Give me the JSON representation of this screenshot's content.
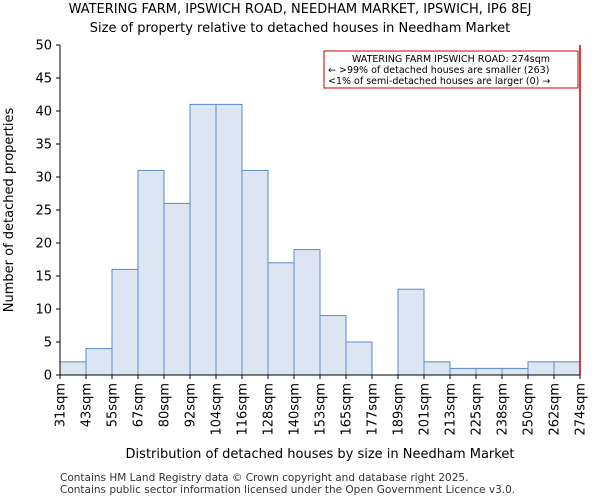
{
  "title_line1": "WATERING FARM, IPSWICH ROAD, NEEDHAM MARKET, IPSWICH, IP6 8EJ",
  "title_line2": "Size of property relative to detached houses in Needham Market",
  "footer_line1": "Contains HM Land Registry data © Crown copyright and database right 2025.",
  "footer_line2": "Contains public sector information licensed under the Open Government Licence v3.0.",
  "colors": {
    "bar_fill": "#dce6f2",
    "bar_stroke": "#5b8ac7",
    "marker": "#cc0000",
    "axis": "#000000"
  },
  "chart_data": {
    "type": "bar",
    "title": "Size of property relative to detached houses in Needham Market",
    "xlabel": "Distribution of detached houses by size in Needham Market",
    "ylabel": "Number of detached properties",
    "ylim": [
      0,
      50
    ],
    "yticks": [
      0,
      5,
      10,
      15,
      20,
      25,
      30,
      35,
      40,
      45,
      50
    ],
    "xtick_labels": [
      "31sqm",
      "43sqm",
      "55sqm",
      "67sqm",
      "80sqm",
      "92sqm",
      "104sqm",
      "116sqm",
      "128sqm",
      "140sqm",
      "153sqm",
      "165sqm",
      "177sqm",
      "189sqm",
      "201sqm",
      "213sqm",
      "225sqm",
      "238sqm",
      "250sqm",
      "262sqm",
      "274sqm"
    ],
    "values": [
      2,
      4,
      16,
      31,
      26,
      41,
      41,
      31,
      17,
      19,
      9,
      5,
      0,
      13,
      2,
      1,
      1,
      1,
      2,
      2
    ],
    "marker_label": "274sqm",
    "annotation": {
      "line1": "WATERING FARM IPSWICH ROAD: 274sqm",
      "line2": "← >99% of detached houses are smaller (263)",
      "line3": "<1% of semi-detached houses are larger (0) →"
    }
  }
}
